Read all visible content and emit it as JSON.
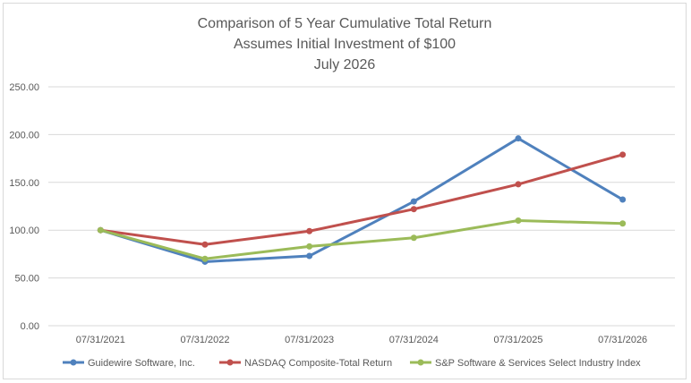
{
  "chart_data": {
    "type": "line",
    "title": [
      "Comparison of 5 Year Cumulative Total Return",
      "Assumes Initial Investment of $100",
      "July 2026"
    ],
    "categories": [
      "07/31/2021",
      "07/31/2022",
      "07/31/2023",
      "07/31/2024",
      "07/31/2025",
      "07/31/2026"
    ],
    "y_ticks": [
      "0.00",
      "50.00",
      "100.00",
      "150.00",
      "200.00",
      "250.00"
    ],
    "ylim": [
      0,
      250
    ],
    "grid": true,
    "legend_position": "bottom",
    "series": [
      {
        "name": "Guidewire Software, Inc.",
        "color": "#4f81bd",
        "values": [
          100,
          67,
          73,
          130,
          196,
          132
        ]
      },
      {
        "name": "NASDAQ Composite-Total Return",
        "color": "#c0504d",
        "values": [
          100,
          85,
          99,
          122,
          148,
          179
        ]
      },
      {
        "name": "S&P Software & Services Select Industry Index",
        "color": "#9bbb59",
        "values": [
          100,
          70,
          83,
          92,
          110,
          107
        ]
      }
    ]
  }
}
